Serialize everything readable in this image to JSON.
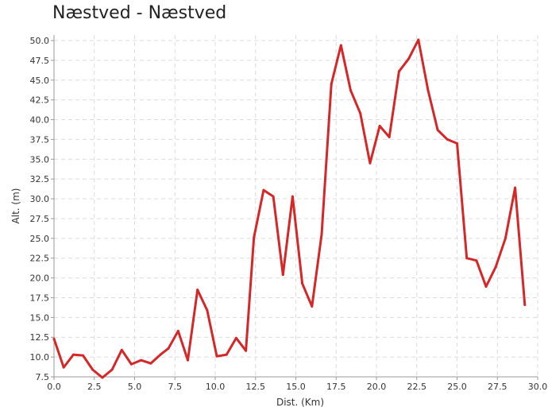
{
  "chart_data": {
    "type": "line",
    "title": "Næstved - Næstved",
    "xlabel": "Dist. (Km)",
    "ylabel": "Alt. (m)",
    "xlim": [
      0,
      30
    ],
    "ylim": [
      7.5,
      50
    ],
    "xticks": [
      "0.0",
      "2.5",
      "5.0",
      "7.5",
      "10.0",
      "12.5",
      "15.0",
      "17.5",
      "20.0",
      "22.5",
      "25.0",
      "27.5",
      "30.0"
    ],
    "yticks": [
      "7.5",
      "10.0",
      "12.5",
      "15.0",
      "17.5",
      "20.0",
      "22.5",
      "25.0",
      "27.5",
      "30.0",
      "32.5",
      "35.0",
      "37.5",
      "40.0",
      "42.5",
      "45.0",
      "47.5",
      "50.0"
    ],
    "grid": true,
    "line_color": "#d62728",
    "series": [
      {
        "x": [
          0.0,
          0.6,
          1.2,
          1.8,
          2.4,
          3.0,
          3.6,
          4.2,
          4.8,
          5.4,
          6.0,
          6.6,
          7.1,
          7.7,
          8.3,
          8.9,
          9.5,
          10.1,
          10.7,
          11.3,
          11.9,
          12.4,
          13.0,
          13.6,
          14.2,
          14.8,
          15.4,
          16.0,
          16.6,
          17.2,
          17.8,
          18.4,
          19.0,
          19.6,
          20.2,
          20.8,
          21.4,
          22.0,
          22.6,
          23.2,
          23.8,
          24.4,
          25.0,
          25.6,
          26.2,
          26.8,
          27.4,
          28.0,
          28.6,
          29.2
        ],
        "values": [
          12.3,
          8.7,
          10.3,
          10.2,
          8.4,
          7.4,
          8.4,
          10.9,
          9.1,
          9.6,
          9.2,
          10.3,
          11.1,
          13.3,
          9.6,
          18.5,
          15.9,
          10.1,
          10.3,
          12.4,
          10.8,
          25.1,
          31.1,
          30.3,
          20.4,
          30.3,
          19.3,
          16.4,
          25.5,
          44.5,
          49.4,
          43.7,
          40.8,
          34.5,
          39.2,
          37.8,
          46.1,
          47.7,
          50.1,
          43.7,
          38.7,
          37.5,
          37.0,
          22.5,
          22.2,
          18.9,
          21.4,
          25.0,
          31.4,
          16.6
        ]
      }
    ]
  }
}
